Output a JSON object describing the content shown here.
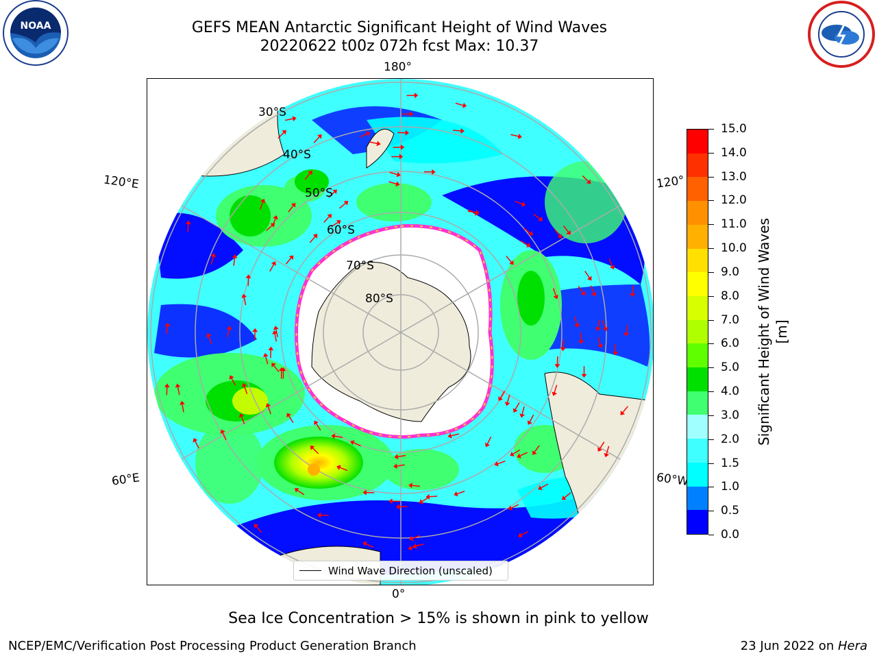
{
  "title": {
    "line1": "GEFS MEAN Antarctic Significant Height of Wind Waves",
    "line2": "20220622 t00z 072h fcst   Max: 10.37"
  },
  "logos": {
    "left": "noaa-logo",
    "right": "nws-logo"
  },
  "map": {
    "longitude_labels": {
      "top": "180°",
      "bottom": "0°",
      "upper_left": "120°E",
      "upper_right": "120°",
      "lower_left": "60°E",
      "lower_right": "60°W"
    },
    "latitude_labels": [
      "30°S",
      "40°S",
      "50°S",
      "60°S",
      "70°S",
      "80°S"
    ],
    "legend_label": "Wind Wave Direction (unscaled)",
    "arrow_color": "#ff0000",
    "land_color": "#efecdc",
    "ice_color": "#ffffff",
    "ice_edge_colors": [
      "#ff33cc",
      "#ffd040"
    ],
    "max_marker": "orange-circle"
  },
  "colorbar": {
    "label": "Significant Height of Wind Waves [m]",
    "ticks": [
      "0.0",
      "0.5",
      "1.0",
      "1.5",
      "2.0",
      "3.0",
      "4.0",
      "5.0",
      "6.0",
      "7.0",
      "8.0",
      "9.0",
      "10.0",
      "11.0",
      "12.0",
      "13.0",
      "14.0",
      "15.0"
    ],
    "colors": [
      "#0000ff",
      "#0080ff",
      "#00ffff",
      "#40ffff",
      "#a0ffff",
      "#40ff70",
      "#00e000",
      "#60ff00",
      "#b0ff00",
      "#d8ff00",
      "#ffff00",
      "#ffe000",
      "#ffb000",
      "#ff9000",
      "#ff6000",
      "#ff3000",
      "#ff0000"
    ]
  },
  "footer": {
    "note": "Sea Ice Concentration > 15% is shown in pink to yellow",
    "credit": "NCEP/EMC/Verification Post Processing Product Generation Branch",
    "date_prefix": "23 Jun 2022 on ",
    "date_machine": "Hera"
  }
}
